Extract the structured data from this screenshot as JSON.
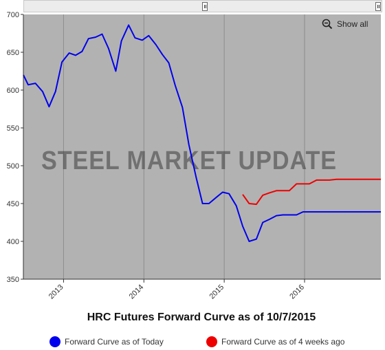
{
  "chart_data": {
    "type": "line",
    "title": "HRC Futures Forward Curve as of 10/7/2015",
    "xlabel": "",
    "ylabel": "",
    "x_tick_labels": [
      "2013",
      "2014",
      "2015",
      "2016"
    ],
    "x_tick_positions": [
      2013.0,
      2014.0,
      2015.0,
      2016.0
    ],
    "x_range": [
      2012.5,
      2016.95
    ],
    "ylim": [
      350,
      700
    ],
    "y_ticks": [
      350,
      400,
      450,
      500,
      550,
      600,
      650,
      700
    ],
    "grid": "vertical at year ticks",
    "legend_position": "bottom",
    "series": [
      {
        "name": "Forward Curve as of Today",
        "color": "#0000ee",
        "x": [
          2012.5,
          2012.56,
          2012.65,
          2012.74,
          2012.82,
          2012.9,
          2012.98,
          2013.07,
          2013.15,
          2013.23,
          2013.31,
          2013.4,
          2013.48,
          2013.56,
          2013.65,
          2013.72,
          2013.81,
          2013.89,
          2013.98,
          2014.06,
          2014.15,
          2014.23,
          2014.31,
          2014.39,
          2014.48,
          2014.56,
          2014.65,
          2014.73,
          2014.81,
          2014.9,
          2014.98,
          2015.06,
          2015.15,
          2015.23,
          2015.31,
          2015.4,
          2015.48,
          2015.56,
          2015.65,
          2015.73,
          2015.81,
          2015.9,
          2015.98,
          2016.06,
          2016.15,
          2016.23,
          2016.31,
          2016.4,
          2016.48,
          2016.56,
          2016.65,
          2016.73,
          2016.81,
          2016.9,
          2016.95
        ],
        "values": [
          620,
          607,
          609,
          598,
          578,
          598,
          637,
          649,
          646,
          651,
          668,
          670,
          674,
          655,
          625,
          665,
          686,
          669,
          666,
          672,
          660,
          647,
          636,
          606,
          577,
          528,
          485,
          450,
          450,
          458,
          465,
          463,
          447,
          420,
          400,
          403,
          425,
          429,
          434,
          435,
          435,
          435,
          439,
          439,
          439,
          439,
          439,
          439,
          439,
          439,
          439,
          439,
          439,
          439,
          439
        ]
      },
      {
        "name": "Forward Curve as of 4 weeks ago",
        "color": "#ee0000",
        "x": [
          2015.23,
          2015.31,
          2015.4,
          2015.48,
          2015.56,
          2015.65,
          2015.73,
          2015.81,
          2015.9,
          2015.98,
          2016.06,
          2016.15,
          2016.23,
          2016.31,
          2016.4,
          2016.48,
          2016.56,
          2016.65,
          2016.73,
          2016.81,
          2016.9,
          2016.95
        ],
        "values": [
          462,
          450,
          449,
          461,
          464,
          467,
          467,
          467,
          476,
          476,
          476,
          481,
          481,
          481,
          482,
          482,
          482,
          482,
          482,
          482,
          482,
          482
        ]
      }
    ]
  },
  "watermark": {
    "text": "STEEL MARKET UPDATE",
    "text_color": "#3c3c3c",
    "swoosh_color": "#d46b3a"
  },
  "show_all_label": "Show all",
  "legend": [
    {
      "label": "Forward Curve as of Today",
      "color": "#0000ee"
    },
    {
      "label": "Forward Curve as of 4 weeks ago",
      "color": "#ee0000"
    }
  ],
  "colors": {
    "plot_background": "#b2b2b2",
    "axis": "#333333",
    "grid": "#8c8c8c"
  }
}
